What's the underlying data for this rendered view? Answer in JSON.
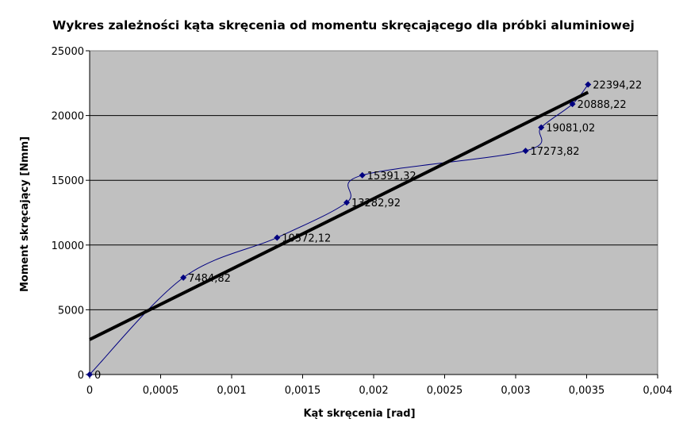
{
  "chart_data": {
    "type": "line",
    "title": "Wykres zależności kąta skręcenia od momentu skręcającego dla próbki aluminiowej",
    "xlabel": "Kąt skręcenia [rad]",
    "ylabel": "Moment skręcający [Nmm]",
    "xlim": [
      0,
      0.004
    ],
    "ylim": [
      0,
      25000
    ],
    "xticks": [
      "0",
      "0,0005",
      "0,001",
      "0,0015",
      "0,002",
      "0,0025",
      "0,003",
      "0,0035",
      "0,004"
    ],
    "yticks": [
      "0",
      "5000",
      "10000",
      "15000",
      "20000",
      "25000"
    ],
    "grid": "horizontal",
    "plot_background": "#c0c0c0",
    "series": [
      {
        "color": "#000080",
        "smoothed": true,
        "marker": "diamond",
        "x": [
          0,
          0.00066,
          0.00132,
          0.00181,
          0.00192,
          0.00307,
          0.00318,
          0.0034,
          0.00351
        ],
        "values": [
          0,
          7484.82,
          10572.12,
          13282.92,
          15391.32,
          17273.82,
          19081.02,
          20888.22,
          22394.22
        ],
        "labels": [
          "0",
          "7484,82",
          "10572,12",
          "13282,92",
          "15391,32",
          "17273,82",
          "19081,02",
          "20888,22",
          "22394,22"
        ]
      }
    ],
    "trendline": {
      "type": "linear",
      "color": "#000000",
      "intercept": 2700,
      "slope": 5440000,
      "x_range": [
        0,
        0.00351
      ]
    }
  }
}
